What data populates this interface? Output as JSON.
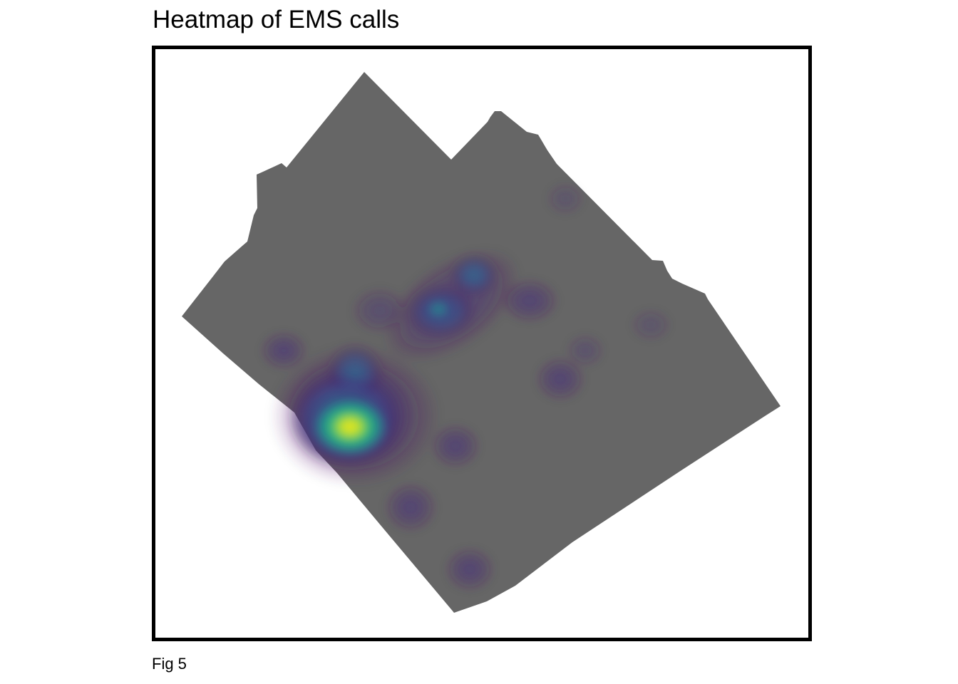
{
  "figure": {
    "title": "Heatmap of EMS calls",
    "caption": "Fig 5"
  },
  "colors": {
    "background": "#ffffff",
    "frame": "#000000",
    "region_fill": "#666666",
    "palette": "viridis",
    "palette_low": "#440154",
    "palette_mid": "#21908c",
    "palette_high": "#fde725"
  },
  "chart_data": {
    "type": "heatmap",
    "title": "Heatmap of EMS calls",
    "colormap": "viridis",
    "legend": "none",
    "grid": false,
    "axes_shown": false,
    "description_of_data": "kernel density of call locations, clipped to region outline",
    "hotspots": [
      {
        "id": "primary",
        "relative_intensity": 1.0
      },
      {
        "id": "north-central",
        "relative_intensity": 0.55
      },
      {
        "id": "north-central-2",
        "relative_intensity": 0.45
      },
      {
        "id": "minor-1",
        "relative_intensity": 0.15
      },
      {
        "id": "minor-2",
        "relative_intensity": 0.15
      },
      {
        "id": "minor-3",
        "relative_intensity": 0.12
      },
      {
        "id": "minor-4",
        "relative_intensity": 0.12
      },
      {
        "id": "minor-5",
        "relative_intensity": 0.1
      },
      {
        "id": "minor-6",
        "relative_intensity": 0.1
      }
    ]
  }
}
